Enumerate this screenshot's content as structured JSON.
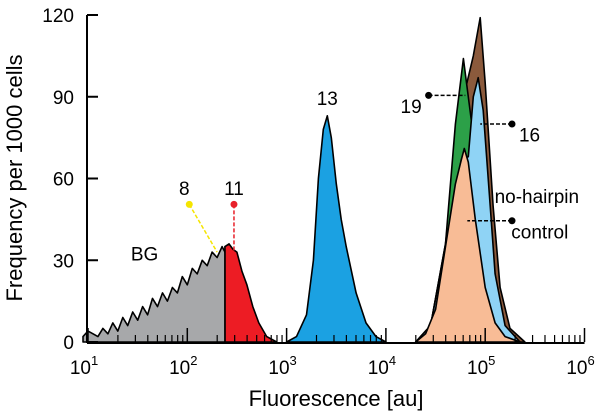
{
  "chart_data": {
    "type": "area",
    "title": "",
    "xlabel": "Fluorescence [au]",
    "ylabel": "Frequency per 1000 cells",
    "xscale": "log",
    "xlim_log10": [
      1,
      6
    ],
    "ylim": [
      0,
      120
    ],
    "x_ticks": [
      {
        "base": "10",
        "exp": "1"
      },
      {
        "base": "10",
        "exp": "2"
      },
      {
        "base": "10",
        "exp": "3"
      },
      {
        "base": "10",
        "exp": "4"
      },
      {
        "base": "10",
        "exp": "5"
      },
      {
        "base": "10",
        "exp": "6"
      }
    ],
    "y_ticks": [
      "0",
      "30",
      "60",
      "90",
      "120"
    ],
    "y_tick_values": [
      0,
      30,
      60,
      90,
      120
    ],
    "series": [
      {
        "name": "BG",
        "label": "BG",
        "color": "#a7a8aa",
        "points": [
          [
            0.95,
            2
          ],
          [
            1.0,
            4
          ],
          [
            1.05,
            3
          ],
          [
            1.1,
            2
          ],
          [
            1.15,
            5
          ],
          [
            1.2,
            3
          ],
          [
            1.25,
            7
          ],
          [
            1.3,
            4
          ],
          [
            1.35,
            9
          ],
          [
            1.4,
            6
          ],
          [
            1.45,
            11
          ],
          [
            1.5,
            8
          ],
          [
            1.55,
            13
          ],
          [
            1.6,
            10
          ],
          [
            1.65,
            16
          ],
          [
            1.7,
            13
          ],
          [
            1.75,
            18
          ],
          [
            1.8,
            15
          ],
          [
            1.85,
            20
          ],
          [
            1.9,
            18
          ],
          [
            1.95,
            24
          ],
          [
            2.0,
            21
          ],
          [
            2.05,
            27
          ],
          [
            2.1,
            25
          ],
          [
            2.15,
            30
          ],
          [
            2.2,
            28
          ],
          [
            2.25,
            33
          ],
          [
            2.3,
            31
          ],
          [
            2.35,
            35
          ],
          [
            2.38,
            33
          ],
          [
            2.42,
            28
          ],
          [
            2.47,
            25
          ],
          [
            2.52,
            17
          ],
          [
            2.58,
            12
          ],
          [
            2.65,
            5
          ],
          [
            2.72,
            1
          ],
          [
            2.8,
            0
          ]
        ]
      },
      {
        "name": "8",
        "label": "8",
        "color": "#fff200",
        "points": [
          [
            2.38,
            35
          ],
          [
            2.42,
            34
          ],
          [
            2.46,
            31
          ],
          [
            2.5,
            28
          ],
          [
            2.55,
            21
          ],
          [
            2.6,
            16
          ],
          [
            2.66,
            9
          ],
          [
            2.72,
            4
          ],
          [
            2.8,
            1
          ],
          [
            2.85,
            0
          ]
        ]
      },
      {
        "name": "11",
        "label": "11",
        "color": "#ed1c24",
        "points": [
          [
            2.38,
            35
          ],
          [
            2.42,
            36
          ],
          [
            2.46,
            34
          ],
          [
            2.5,
            33
          ],
          [
            2.55,
            26
          ],
          [
            2.6,
            21
          ],
          [
            2.66,
            13
          ],
          [
            2.72,
            7
          ],
          [
            2.8,
            2
          ],
          [
            2.9,
            0
          ]
        ]
      },
      {
        "name": "13",
        "label": "13",
        "color": "#1ba1e2",
        "points": [
          [
            3.0,
            0
          ],
          [
            3.1,
            2
          ],
          [
            3.2,
            10
          ],
          [
            3.27,
            30
          ],
          [
            3.32,
            60
          ],
          [
            3.37,
            78
          ],
          [
            3.41,
            83
          ],
          [
            3.45,
            75
          ],
          [
            3.5,
            58
          ],
          [
            3.55,
            45
          ],
          [
            3.6,
            35
          ],
          [
            3.7,
            18
          ],
          [
            3.8,
            7
          ],
          [
            3.9,
            2
          ],
          [
            4.0,
            0
          ]
        ]
      },
      {
        "name": "brown",
        "label": "",
        "color": "#8b5a3c",
        "points": [
          [
            4.3,
            0
          ],
          [
            4.45,
            6
          ],
          [
            4.6,
            36
          ],
          [
            4.75,
            85
          ],
          [
            4.88,
            105
          ],
          [
            4.95,
            119
          ],
          [
            5.0,
            95
          ],
          [
            5.08,
            50
          ],
          [
            5.15,
            20
          ],
          [
            5.25,
            5
          ],
          [
            5.4,
            0
          ]
        ]
      },
      {
        "name": "19",
        "label": "19",
        "color": "#2ca048",
        "points": [
          [
            4.3,
            0
          ],
          [
            4.45,
            6
          ],
          [
            4.6,
            36
          ],
          [
            4.7,
            80
          ],
          [
            4.78,
            104
          ],
          [
            4.83,
            90
          ],
          [
            4.9,
            70
          ],
          [
            5.0,
            30
          ],
          [
            5.1,
            8
          ],
          [
            5.3,
            0
          ]
        ]
      },
      {
        "name": "16",
        "label": "16",
        "color": "#8fd3f5",
        "points": [
          [
            4.3,
            0
          ],
          [
            4.45,
            6
          ],
          [
            4.6,
            35
          ],
          [
            4.76,
            67
          ],
          [
            4.83,
            68
          ],
          [
            4.88,
            90
          ],
          [
            4.93,
            97
          ],
          [
            4.98,
            85
          ],
          [
            5.05,
            50
          ],
          [
            5.1,
            25
          ],
          [
            5.2,
            6
          ],
          [
            5.35,
            0
          ]
        ]
      },
      {
        "name": "no-hairpin control",
        "label": "no-hairpin control",
        "color": "#f8bc96",
        "points": [
          [
            4.3,
            0
          ],
          [
            4.4,
            3
          ],
          [
            4.5,
            12
          ],
          [
            4.6,
            35
          ],
          [
            4.7,
            58
          ],
          [
            4.76,
            67
          ],
          [
            4.79,
            71
          ],
          [
            4.83,
            66
          ],
          [
            4.9,
            45
          ],
          [
            5.0,
            20
          ],
          [
            5.1,
            7
          ],
          [
            5.2,
            2
          ],
          [
            5.35,
            0
          ]
        ]
      }
    ],
    "annotations": {
      "bg": "BG",
      "s8": "8",
      "s11": "11",
      "s13": "13",
      "s19": "19",
      "s16": "16",
      "control_line1": "no-hairpin",
      "control_line2": "control"
    }
  }
}
